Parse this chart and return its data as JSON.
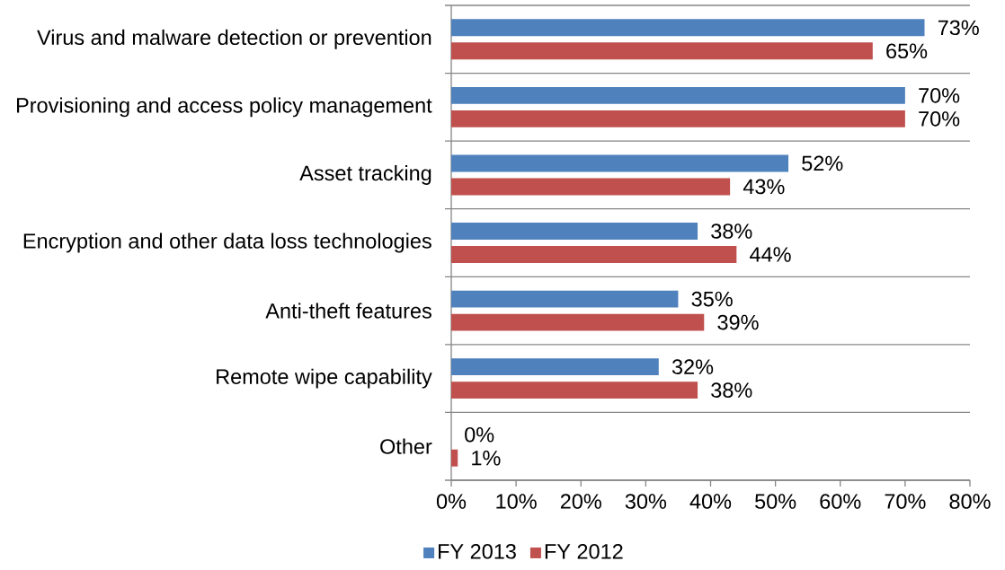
{
  "chart_data": {
    "type": "bar",
    "orientation": "horizontal",
    "categories": [
      "Virus and malware detection or prevention",
      "Provisioning and access policy management",
      "Asset tracking",
      "Encryption and other data loss technologies",
      "Anti-theft features",
      "Remote wipe capability",
      "Other"
    ],
    "series": [
      {
        "name": "FY 2013",
        "color": "#4f81bd",
        "values": [
          73,
          70,
          52,
          38,
          35,
          32,
          0
        ],
        "value_labels": [
          "73%",
          "70%",
          "52%",
          "38%",
          "35%",
          "32%",
          "0%"
        ]
      },
      {
        "name": "FY 2012",
        "color": "#c0504d",
        "values": [
          65,
          70,
          43,
          44,
          39,
          38,
          1
        ],
        "value_labels": [
          "65%",
          "70%",
          "43%",
          "44%",
          "39%",
          "38%",
          "1%"
        ]
      }
    ],
    "xlim": [
      0,
      80
    ],
    "xticks": [
      {
        "value": 0,
        "label": "0%"
      },
      {
        "value": 10,
        "label": "10%"
      },
      {
        "value": 20,
        "label": "20%"
      },
      {
        "value": 30,
        "label": "30%"
      },
      {
        "value": 40,
        "label": "40%"
      },
      {
        "value": 50,
        "label": "50%"
      },
      {
        "value": 60,
        "label": "60%"
      },
      {
        "value": 70,
        "label": "70%"
      },
      {
        "value": 80,
        "label": "80%"
      }
    ],
    "grid": "y",
    "legend": "bottom"
  }
}
